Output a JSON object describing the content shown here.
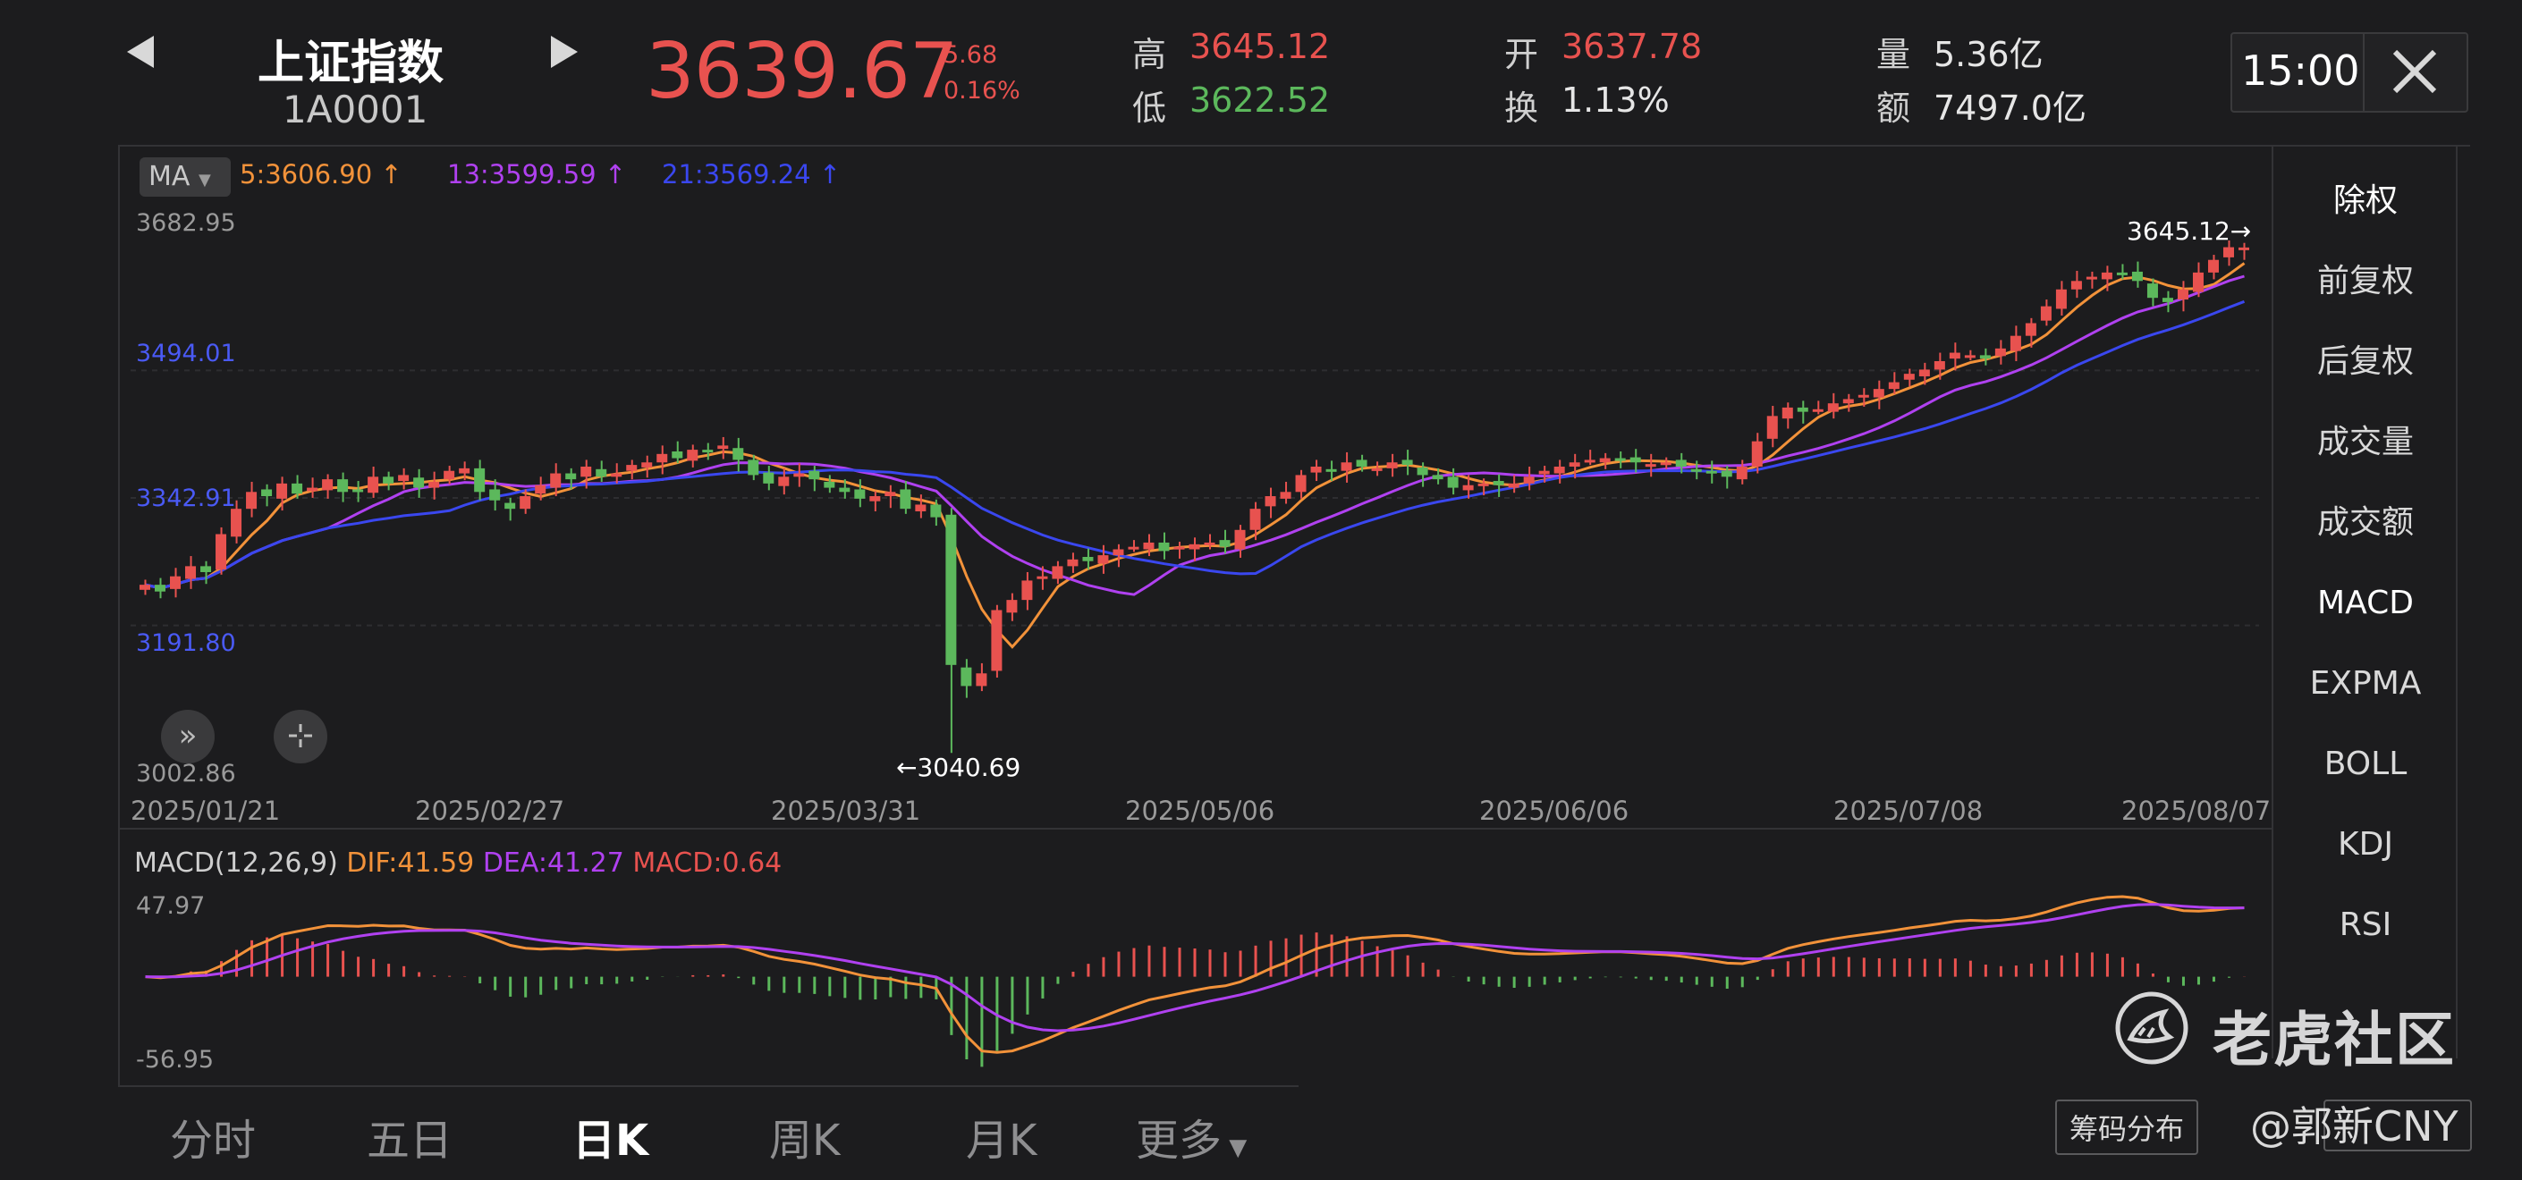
{
  "header": {
    "name": "上证指数",
    "code": "1A0001",
    "price": "3639.67",
    "change": "5.68",
    "change_pct": "0.16%",
    "stats": {
      "high_label": "高",
      "high": "3645.12",
      "low_label": "低",
      "low": "3622.52",
      "open_label": "开",
      "open": "3637.78",
      "turnover_label": "换",
      "turnover": "1.13%",
      "volume_label": "量",
      "volume": "5.36亿",
      "amount_label": "额",
      "amount": "7497.0亿"
    },
    "time": "15:00"
  },
  "ma_bar": {
    "tag": "MA",
    "ma5": "5:3606.90",
    "ma13": "13:3599.59",
    "ma21": "21:3569.24"
  },
  "candle_axis": {
    "y_labels": [
      "3682.95",
      "3494.01",
      "3342.91",
      "3191.80",
      "3002.86"
    ],
    "dates": [
      "2025/01/21",
      "2025/02/27",
      "2025/03/31",
      "2025/05/06",
      "2025/06/06",
      "2025/07/08",
      "2025/08/07"
    ],
    "high_annot": "3645.12",
    "low_annot": "3040.69"
  },
  "macd": {
    "title": "MACD(12,26,9)",
    "dif": "DIF:41.59",
    "dea": "DEA:41.27",
    "macd": "MACD:0.64",
    "y_top": "47.97",
    "y_bottom": "-56.95"
  },
  "sidebar": {
    "items": [
      "除权",
      "前复权",
      "后复权",
      "成交量",
      "成交额",
      "MACD",
      "EXPMA",
      "BOLL",
      "KDJ",
      "RSI"
    ]
  },
  "tabs": [
    "分时",
    "五日",
    "日K",
    "周K",
    "月K",
    "更多"
  ],
  "chip": "筹码分布",
  "watermark": {
    "text": "老虎社区",
    "author": "@郭新CNY"
  },
  "colors": {
    "up": "#e8524f",
    "down": "#5cb85c",
    "ma5": "#f2923a",
    "ma13": "#b041f0",
    "ma21": "#3a47ef"
  },
  "chart_data": {
    "type": "candlestick",
    "title": "上证指数",
    "ylim": [
      3002.86,
      3682.95
    ],
    "x_ticks": [
      "2025/01/21",
      "2025/02/27",
      "2025/03/31",
      "2025/05/06",
      "2025/06/06",
      "2025/07/08",
      "2025/08/07"
    ],
    "close_series_approx": [
      3240,
      3232,
      3250,
      3262,
      3255,
      3300,
      3330,
      3350,
      3345,
      3360,
      3348,
      3355,
      3365,
      3350,
      3352,
      3368,
      3360,
      3370,
      3355,
      3362,
      3375,
      3378,
      3350,
      3340,
      3330,
      3345,
      3358,
      3372,
      3365,
      3380,
      3368,
      3372,
      3382,
      3385,
      3395,
      3390,
      3400,
      3398,
      3405,
      3388,
      3370,
      3360,
      3368,
      3372,
      3365,
      3355,
      3350,
      3342,
      3345,
      3350,
      3330,
      3335,
      3320,
      3145,
      3120,
      3135,
      3210,
      3222,
      3245,
      3250,
      3262,
      3270,
      3268,
      3275,
      3282,
      3285,
      3290,
      3280,
      3285,
      3288,
      3290,
      3285,
      3305,
      3330,
      3345,
      3350,
      3370,
      3380,
      3375,
      3385,
      3380,
      3378,
      3385,
      3382,
      3370,
      3365,
      3355,
      3358,
      3360,
      3358,
      3360,
      3368,
      3375,
      3380,
      3385,
      3388,
      3390,
      3388,
      3385,
      3383,
      3385,
      3380,
      3375,
      3372,
      3368,
      3380,
      3410,
      3440,
      3450,
      3445,
      3448,
      3455,
      3460,
      3465,
      3472,
      3480,
      3490,
      3495,
      3505,
      3515,
      3512,
      3508,
      3520,
      3535,
      3550,
      3570,
      3590,
      3600,
      3605,
      3610,
      3608,
      3600,
      3580,
      3575,
      3590,
      3610,
      3625,
      3640,
      3639.67
    ],
    "ma5_last": 3606.9,
    "ma13_last": 3599.59,
    "ma21_last": 3569.24,
    "high": 3645.12,
    "low": 3040.69
  }
}
